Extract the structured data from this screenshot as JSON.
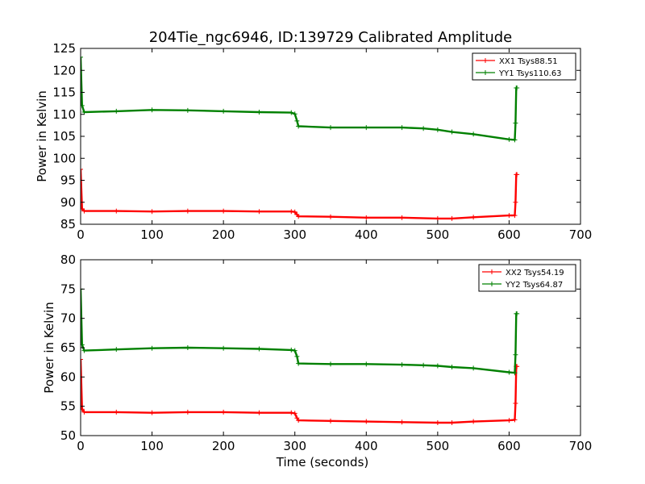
{
  "figure": {
    "title": "204Tie_ngc6946, ID:139729 Calibrated Amplitude",
    "xlabel": "Time (seconds)"
  },
  "chart_data": [
    {
      "type": "line",
      "xlabel": "",
      "ylabel": "Power in Kelvin",
      "xlim": [
        0,
        700
      ],
      "ylim": [
        85,
        125
      ],
      "xticks": [
        "0",
        "100",
        "200",
        "300",
        "400",
        "500",
        "600",
        "700"
      ],
      "yticks": [
        "85",
        "90",
        "95",
        "100",
        "105",
        "110",
        "115",
        "120",
        "125"
      ],
      "grid": false,
      "legend_position": "top-right",
      "series": [
        {
          "name": "XX1 Tsys88.51",
          "color": "#ff0000",
          "x": [
            0,
            2,
            5,
            50,
            100,
            150,
            200,
            250,
            295,
            300,
            303,
            305,
            350,
            400,
            450,
            500,
            520,
            550,
            600,
            608,
            609,
            610,
            611
          ],
          "y": [
            97.5,
            88.5,
            88.0,
            88.0,
            87.9,
            88.0,
            88.0,
            87.9,
            87.9,
            87.8,
            87.2,
            86.8,
            86.7,
            86.5,
            86.5,
            86.3,
            86.3,
            86.6,
            87.0,
            87.0,
            90.0,
            96.3,
            96.3
          ]
        },
        {
          "name": "YY1 Tsys110.63",
          "color": "#008000",
          "x": [
            0,
            2,
            5,
            50,
            100,
            150,
            200,
            250,
            295,
            300,
            303,
            305,
            350,
            400,
            450,
            480,
            500,
            520,
            550,
            600,
            608,
            609,
            610,
            611
          ],
          "y": [
            123,
            112.0,
            110.5,
            110.7,
            111.0,
            110.9,
            110.7,
            110.5,
            110.4,
            110.1,
            108.5,
            107.3,
            107.0,
            107.0,
            107.0,
            106.8,
            106.5,
            106.0,
            105.5,
            104.3,
            104.2,
            108.0,
            116.0,
            116.0
          ]
        }
      ]
    },
    {
      "type": "line",
      "xlabel": "Time (seconds)",
      "ylabel": "Power in Kelvin",
      "xlim": [
        0,
        700
      ],
      "ylim": [
        50,
        80
      ],
      "xticks": [
        "0",
        "100",
        "200",
        "300",
        "400",
        "500",
        "600",
        "700"
      ],
      "yticks": [
        "50",
        "55",
        "60",
        "65",
        "70",
        "75",
        "80"
      ],
      "grid": false,
      "legend_position": "top-right",
      "series": [
        {
          "name": "XX2 Tsys54.19",
          "color": "#ff0000",
          "x": [
            0,
            2,
            5,
            50,
            100,
            150,
            200,
            250,
            295,
            300,
            303,
            305,
            350,
            400,
            450,
            500,
            520,
            550,
            600,
            608,
            609,
            610,
            611
          ],
          "y": [
            63.0,
            54.5,
            54.0,
            54.0,
            53.9,
            54.0,
            54.0,
            53.9,
            53.9,
            53.8,
            53.0,
            52.6,
            52.5,
            52.4,
            52.3,
            52.2,
            52.2,
            52.4,
            52.6,
            52.7,
            55.5,
            61.8,
            61.8
          ]
        },
        {
          "name": "YY2 Tsys64.87",
          "color": "#008000",
          "x": [
            0,
            2,
            5,
            50,
            100,
            150,
            200,
            250,
            295,
            300,
            303,
            305,
            350,
            400,
            450,
            480,
            500,
            520,
            550,
            600,
            608,
            609,
            610,
            611
          ],
          "y": [
            75.0,
            65.5,
            64.5,
            64.7,
            64.9,
            65.0,
            64.9,
            64.8,
            64.6,
            64.5,
            63.5,
            62.3,
            62.2,
            62.2,
            62.1,
            62.0,
            61.9,
            61.7,
            61.5,
            60.8,
            60.7,
            63.8,
            70.8,
            70.8
          ]
        }
      ]
    }
  ]
}
